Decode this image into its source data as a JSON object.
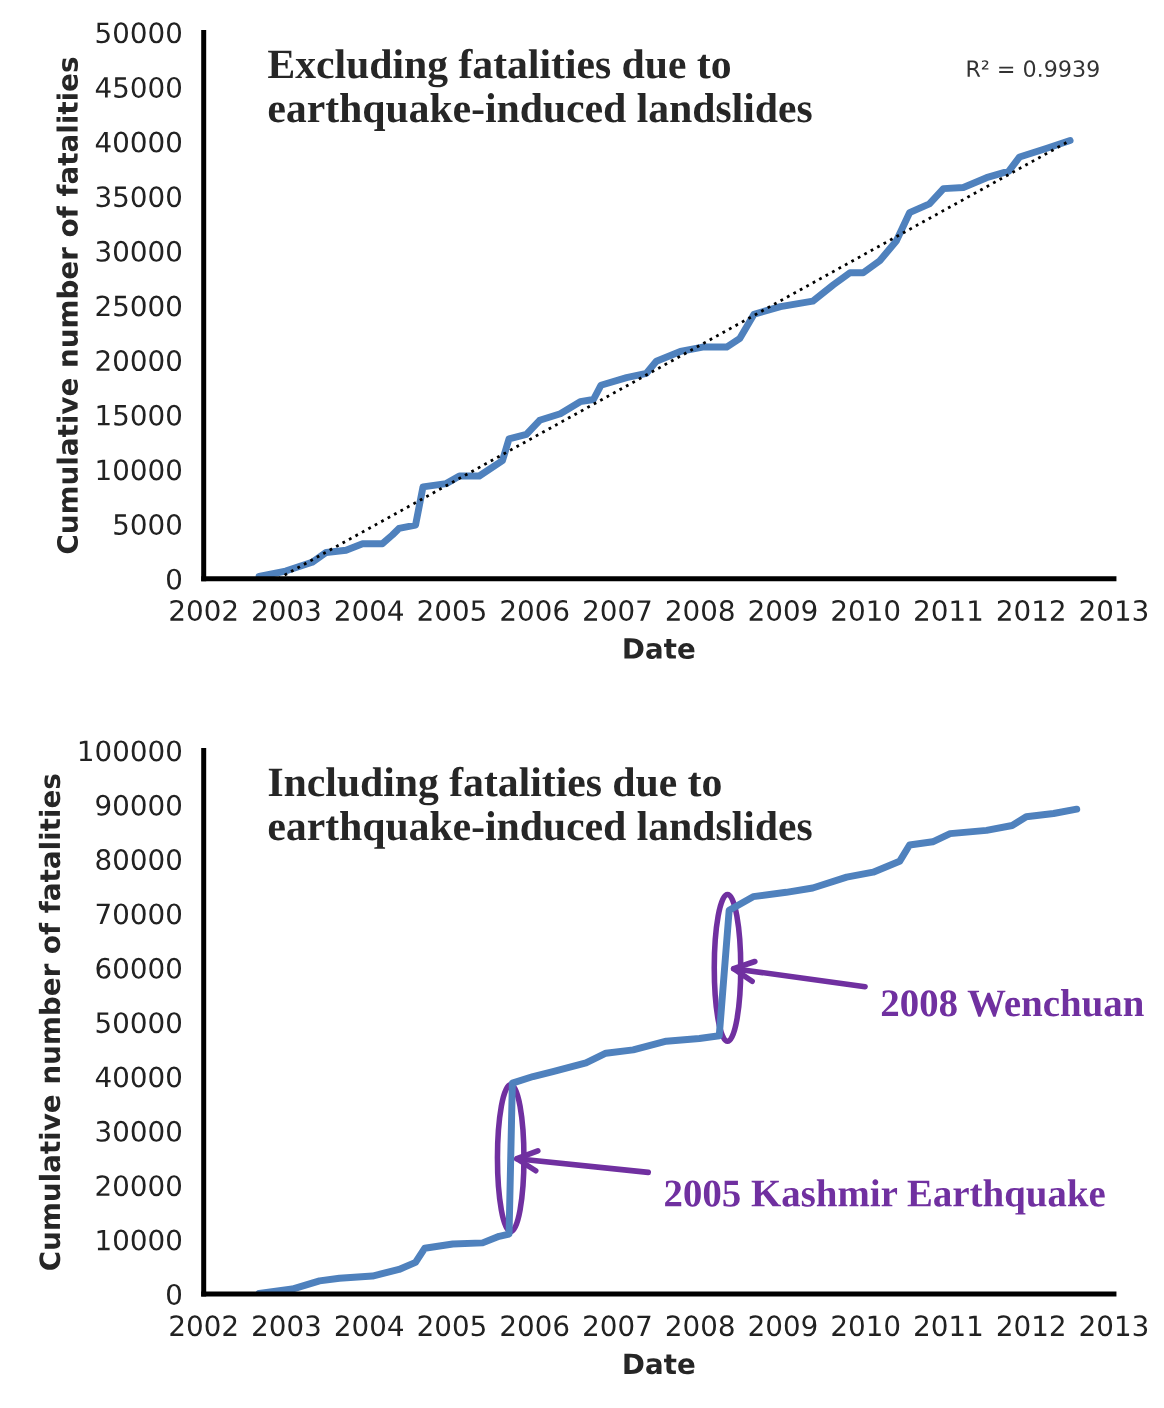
{
  "chart_data": [
    {
      "type": "line",
      "title": "Excluding fatalities due to\nearthquake-induced landslides",
      "xlabel": "Date",
      "ylabel": "Cumulative number of fatalities",
      "xlim": [
        2002,
        2013
      ],
      "xticks": [
        2002,
        2003,
        2004,
        2005,
        2006,
        2007,
        2008,
        2009,
        2010,
        2011,
        2012,
        2013
      ],
      "ylim": [
        0,
        50000
      ],
      "yticks": [
        0,
        5000,
        10000,
        15000,
        20000,
        25000,
        30000,
        35000,
        40000,
        45000,
        50000
      ],
      "grid": false,
      "legend": false,
      "series": [
        {
          "color": "#4f81bd",
          "line_style": "solid",
          "x": [
            2002.67,
            2002.99,
            2003.31,
            2003.48,
            2003.72,
            2003.92,
            2004.16,
            2004.28,
            2004.36,
            2004.56,
            2004.65,
            2004.93,
            2005.09,
            2005.33,
            2005.61,
            2005.69,
            2005.9,
            2006.06,
            2006.31,
            2006.55,
            2006.71,
            2006.8,
            2007.11,
            2007.35,
            2007.47,
            2007.76,
            2008.03,
            2008.32,
            2008.48,
            2008.65,
            2008.97,
            2009.36,
            2009.61,
            2009.81,
            2009.97,
            2010.17,
            2010.37,
            2010.53,
            2010.77,
            2010.94,
            2011.18,
            2011.46,
            2011.73,
            2011.86,
            2012.19,
            2012.47
          ],
          "values": [
            200,
            700,
            1500,
            2400,
            2600,
            3200,
            3200,
            4000,
            4600,
            4900,
            8400,
            8700,
            9400,
            9400,
            10800,
            12800,
            13200,
            14500,
            15100,
            16200,
            16400,
            17700,
            18400,
            18800,
            19900,
            20800,
            21200,
            21200,
            22000,
            24200,
            24900,
            25400,
            26900,
            28000,
            28000,
            29100,
            30900,
            33500,
            34300,
            35700,
            35800,
            36700,
            37300,
            38600,
            39400,
            40100
          ]
        },
        {
          "type": "line",
          "color": "#000000",
          "line_style": "dotted",
          "x": [
            2002.9,
            2012.47
          ],
          "values": [
            0,
            40100
          ]
        }
      ],
      "annotations": [
        "R² = 0.9939"
      ]
    },
    {
      "type": "line",
      "title": "Including fatalities due to\nearthquake-induced landslides",
      "xlabel": "Date",
      "ylabel": "Cumulative number of fatalities",
      "xlim": [
        2002,
        2013
      ],
      "xticks": [
        2002,
        2003,
        2004,
        2005,
        2006,
        2007,
        2008,
        2009,
        2010,
        2011,
        2012,
        2013
      ],
      "ylim": [
        0,
        100000
      ],
      "yticks": [
        0,
        10000,
        20000,
        30000,
        40000,
        50000,
        60000,
        70000,
        80000,
        90000,
        100000
      ],
      "grid": false,
      "legend": false,
      "series": [
        {
          "color": "#4f81bd",
          "line_style": "solid",
          "x": [
            2002.67,
            2003.07,
            2003.4,
            2003.64,
            2004.04,
            2004.36,
            2004.56,
            2004.67,
            2005.01,
            2005.37,
            2005.57,
            2005.69,
            2005.73,
            2005.98,
            2006.22,
            2006.62,
            2006.86,
            2007.19,
            2007.59,
            2007.99,
            2008.23,
            2008.35,
            2008.64,
            2009.04,
            2009.36,
            2009.77,
            2010.09,
            2010.41,
            2010.53,
            2010.81,
            2011.02,
            2011.46,
            2011.77,
            2011.94,
            2012.27,
            2012.55
          ],
          "values": [
            100,
            900,
            2400,
            2900,
            3300,
            4500,
            5800,
            8400,
            9200,
            9400,
            10600,
            11000,
            38800,
            40000,
            40900,
            42500,
            44300,
            44900,
            46500,
            47000,
            47500,
            70600,
            73100,
            73900,
            74700,
            76700,
            77600,
            79600,
            82600,
            83200,
            84700,
            85300,
            86200,
            87800,
            88400,
            89200
          ]
        }
      ],
      "annotations": [
        {
          "text": "2005 Kashmir Earthquake",
          "x": 2005.71,
          "y": 25000
        },
        {
          "text": "2008 Wenchuan",
          "x": 2008.33,
          "y": 60000
        }
      ]
    }
  ]
}
